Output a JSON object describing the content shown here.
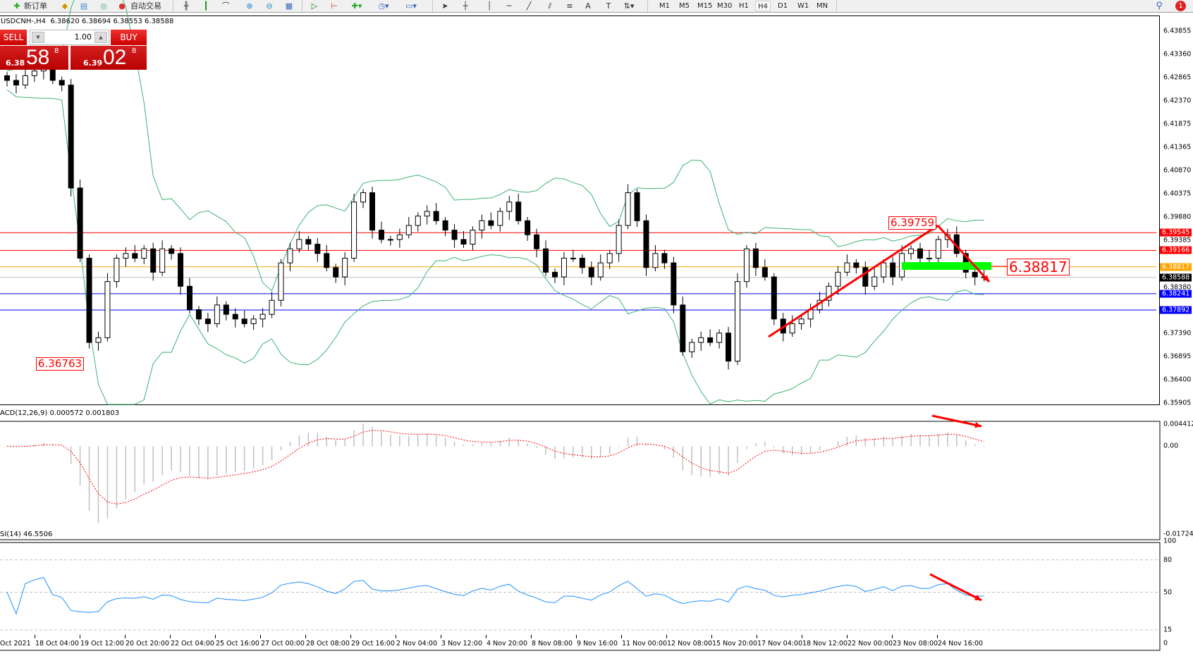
{
  "toolbar": {
    "new_order_label": "新订单",
    "auto_trading_label": "自动交易",
    "timeframes": [
      "M1",
      "M5",
      "M15",
      "M30",
      "H1",
      "H4",
      "D1",
      "W1",
      "MN"
    ],
    "active_timeframe": "H4",
    "notification_count": "1"
  },
  "chart_header": {
    "symbol": "USDCNH-,H4",
    "open": "6.38620",
    "high": "6.38694",
    "low": "6.38553",
    "close": "6.38588"
  },
  "one_click": {
    "sell_label": "SELL",
    "buy_label": "BUY",
    "lot": "1.00",
    "sell_prefix": "6.38",
    "sell_big": "58",
    "sell_sup": "8",
    "buy_prefix": "6.39",
    "buy_big": "02",
    "buy_sup": "8"
  },
  "colors": {
    "up_candle": "#ffffff",
    "down_candle": "#000000",
    "bands": "#3cb371",
    "resistance": "#ff0000",
    "pivot": "#ffa500",
    "support": "#0000ff",
    "current": "#c0c0c0",
    "macd_hist": "#c0c0c0",
    "macd_signal": "#ff0000",
    "rsi": "#1e90ff",
    "annotation": "#ff0000",
    "zone": "#00ff00"
  },
  "chart_data": {
    "type": "candlestick",
    "symbol": "USDCNH-",
    "timeframe": "H4",
    "ylim": [
      6.35905,
      6.43855
    ],
    "y_ticks": [
      "6.43855",
      "6.43360",
      "6.42865",
      "6.42370",
      "6.41875",
      "6.41365",
      "6.40870",
      "6.40375",
      "6.39880",
      "6.39385",
      "6.38380",
      "6.37390",
      "6.36895",
      "6.36400",
      "6.35905"
    ],
    "x_ticks": [
      "Oct 2021",
      "18 Oct 04:00",
      "19 Oct 12:00",
      "20 Oct 20:00",
      "22 Oct 04:00",
      "25 Oct 16:00",
      "27 Oct 00:00",
      "28 Oct 08:00",
      "29 Oct 16:00",
      "2 Nov 04:00",
      "3 Nov 12:00",
      "4 Nov 20:00",
      "8 Nov 08:00",
      "9 Nov 16:00",
      "11 Nov 00:00",
      "12 Nov 08:00",
      "15 Nov 20:00",
      "17 Nov 04:00",
      "18 Nov 12:00",
      "22 Nov 00:00",
      "23 Nov 08:00",
      "24 Nov 16:00"
    ],
    "closes": [
      6.428,
      6.427,
      6.429,
      6.43,
      6.431,
      6.428,
      6.427,
      6.405,
      6.39,
      6.372,
      6.373,
      6.385,
      6.39,
      6.391,
      6.39,
      6.392,
      6.387,
      6.392,
      6.391,
      6.384,
      6.379,
      6.377,
      6.376,
      6.38,
      6.378,
      6.377,
      6.376,
      6.377,
      6.378,
      6.381,
      6.389,
      6.392,
      6.394,
      6.393,
      6.391,
      6.388,
      6.386,
      6.39,
      6.402,
      6.404,
      6.396,
      6.394,
      6.394,
      6.395,
      6.397,
      6.399,
      6.4,
      6.398,
      6.396,
      6.394,
      6.393,
      6.396,
      6.398,
      6.397,
      6.4,
      6.402,
      6.398,
      6.395,
      6.392,
      6.387,
      6.386,
      6.39,
      6.39,
      6.388,
      6.386,
      6.389,
      6.391,
      6.397,
      6.404,
      6.398,
      6.388,
      6.391,
      6.389,
      6.38,
      6.37,
      6.372,
      6.373,
      6.372,
      6.374,
      6.368,
      6.385,
      6.392,
      6.388,
      6.386,
      6.377,
      6.374,
      6.376,
      6.377,
      6.379,
      6.381,
      6.384,
      6.387,
      6.389,
      6.388,
      6.384,
      6.386,
      6.389,
      6.386,
      6.391,
      6.392,
      6.39,
      6.39,
      6.394,
      6.395,
      6.391,
      6.387,
      6.386,
      6.38588
    ],
    "levels": [
      {
        "price": "6.39545",
        "kind": "resistance"
      },
      {
        "price": "6.39166",
        "kind": "resistance"
      },
      {
        "price": "6.38817",
        "kind": "pivot"
      },
      {
        "price": "6.38588",
        "kind": "current"
      },
      {
        "price": "6.38241",
        "kind": "support"
      },
      {
        "price": "6.37892",
        "kind": "support"
      }
    ],
    "annotations": {
      "high_label": "6.39759",
      "zone_label": "6.38817",
      "low_label": "6.36763"
    },
    "macd": {
      "label": "ACD(12,26,9) 0.000572 0.001803",
      "ylim": [
        -0.017247,
        0.004412
      ],
      "ticks": [
        "0.004412",
        "0.00",
        "-0.017247"
      ]
    },
    "rsi": {
      "label": "SI(14) 46.5506",
      "ticks": [
        "100",
        "80",
        "50",
        "15",
        "0"
      ],
      "levels": [
        80,
        50,
        15
      ]
    }
  }
}
